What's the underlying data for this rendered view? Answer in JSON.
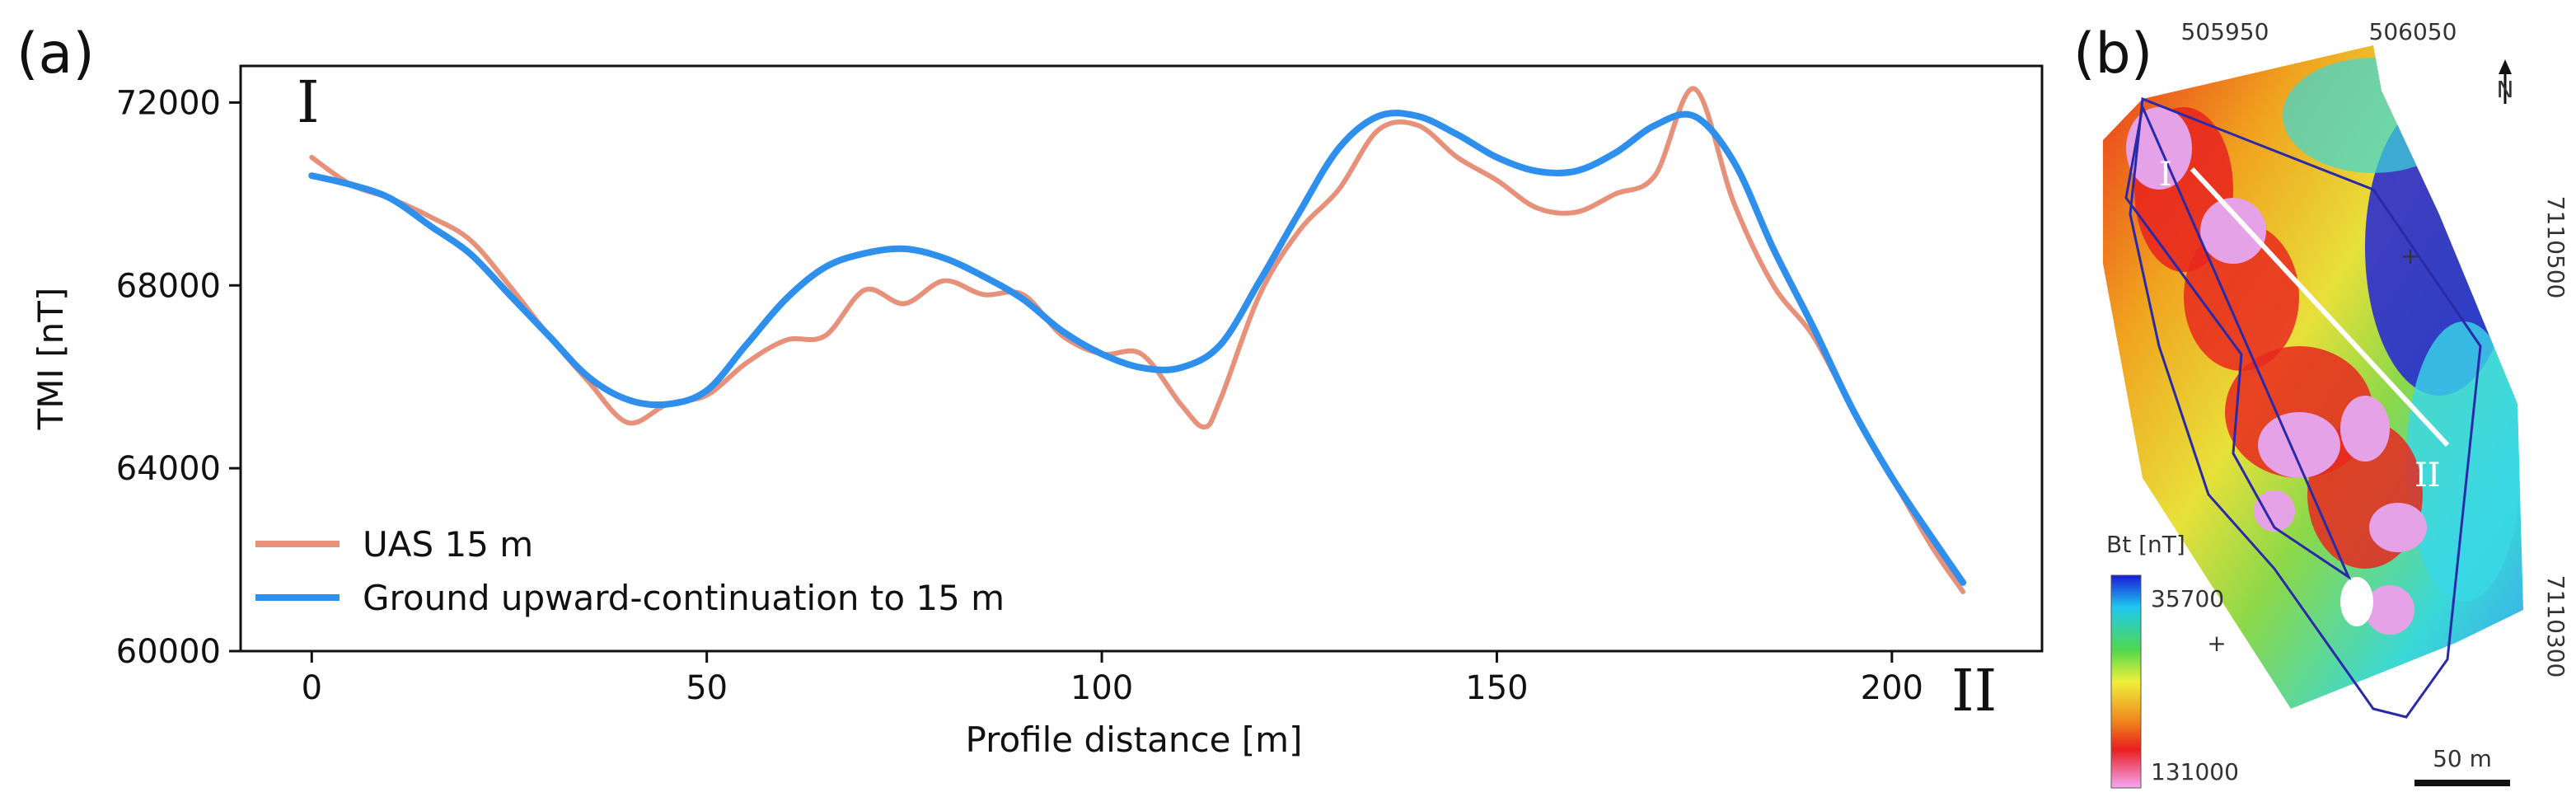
{
  "chart_data": [
    {
      "panel": "(a)",
      "type": "line",
      "xlabel": "Profile distance [m]",
      "ylabel": "TMI [nT]",
      "xlim": [
        -9,
        219
      ],
      "ylim": [
        60000,
        72800
      ],
      "xticks": [
        0,
        50,
        100,
        150,
        200
      ],
      "yticks": [
        60000,
        64000,
        68000,
        72000
      ],
      "tick_labels_y": [
        "60000",
        "64000",
        "68000",
        "72000"
      ],
      "tick_labels_x": [
        "0",
        "50",
        "100",
        "150",
        "200"
      ],
      "profile_start_label": "I",
      "profile_end_label": "II",
      "legend": "lower-left",
      "grid": false,
      "series": [
        {
          "name": "UAS 15 m",
          "color": "#e8917a",
          "x": [
            0,
            5,
            10,
            15,
            20,
            25,
            30,
            35,
            40,
            45,
            50,
            55,
            60,
            65,
            70,
            75,
            80,
            85,
            90,
            95,
            100,
            105,
            110,
            113,
            115,
            120,
            125,
            130,
            135,
            140,
            145,
            150,
            155,
            160,
            165,
            170,
            175,
            180,
            185,
            190,
            195,
            200,
            205,
            209
          ],
          "y": [
            70800,
            70200,
            69900,
            69500,
            69000,
            68000,
            66900,
            65900,
            65000,
            65400,
            65600,
            66300,
            66800,
            66900,
            67900,
            67600,
            68100,
            67800,
            67800,
            66900,
            66500,
            66500,
            65400,
            64900,
            65500,
            67800,
            69200,
            70100,
            71400,
            71500,
            70800,
            70300,
            69700,
            69600,
            70000,
            70400,
            72300,
            69800,
            68000,
            66900,
            65300,
            63800,
            62300,
            61300
          ]
        },
        {
          "name": "Ground upward-continuation to 15 m",
          "color": "#2e8fec",
          "x": [
            0,
            5,
            10,
            15,
            20,
            25,
            30,
            35,
            40,
            45,
            50,
            55,
            60,
            65,
            70,
            75,
            80,
            85,
            90,
            95,
            100,
            105,
            110,
            115,
            120,
            125,
            130,
            135,
            140,
            145,
            150,
            155,
            160,
            165,
            170,
            175,
            180,
            185,
            190,
            195,
            200,
            205,
            209
          ],
          "y": [
            70400,
            70200,
            69900,
            69300,
            68700,
            67800,
            66900,
            66000,
            65500,
            65400,
            65700,
            66700,
            67700,
            68400,
            68700,
            68800,
            68600,
            68200,
            67700,
            67000,
            66500,
            66200,
            66200,
            66700,
            68100,
            69600,
            71000,
            71700,
            71700,
            71300,
            70800,
            70500,
            70500,
            70900,
            71500,
            71700,
            70700,
            68800,
            67100,
            65300,
            63800,
            62500,
            61500
          ]
        }
      ]
    },
    {
      "panel": "(b)",
      "type": "heatmap",
      "colorbar_title": "Bt [nT]",
      "colorbar_top_label": "35700",
      "colorbar_bottom_label": "131000",
      "easting_labels": [
        "505950",
        "506050"
      ],
      "northing_labels": [
        "7110500",
        "7110300"
      ],
      "profile_start_label": "I",
      "profile_end_label": "II",
      "scale_bar_label": "50 m",
      "north_arrow_label": "N"
    }
  ]
}
